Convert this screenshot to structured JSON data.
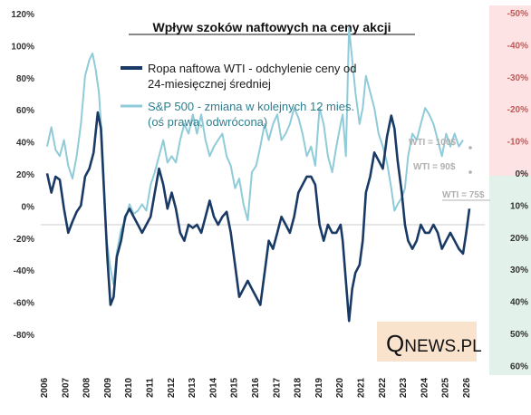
{
  "chart_data": {
    "type": "line",
    "title": "Wpływ szoków naftowych na ceny akcji",
    "x_tick_labels": [
      "2006",
      "2007",
      "2008",
      "2009",
      "2010",
      "2011",
      "2012",
      "2013",
      "2014",
      "2015",
      "2016",
      "2017",
      "2018",
      "2019",
      "2020",
      "2021",
      "2022",
      "2023",
      "2024",
      "2025",
      "2026"
    ],
    "y_left": {
      "ylim": [
        -80,
        120
      ],
      "tick_labels": [
        "-80%",
        "-60%",
        "-40%",
        "-20%",
        "0%",
        "20%",
        "40%",
        "60%",
        "80%",
        "100%",
        "120%"
      ]
    },
    "y_right": {
      "inverted": true,
      "tick_labels": [
        "-50%",
        "-40%",
        "-30%",
        "-20%",
        "-10%",
        "0%",
        "10%",
        "20%",
        "30%",
        "40%",
        "50%",
        "60%"
      ]
    },
    "legend": [
      {
        "label_line1": "Ropa naftowa WTI - odchylenie ceny od",
        "label_line2": "24-miesięcznej średniej",
        "color": "#1a3a66"
      },
      {
        "label_line1": "S&P 500 - zmiana w kolejnych 12 mies.",
        "label_line2": "(oś prawa, odwrócona)",
        "color": "#8fcbd8"
      }
    ],
    "annotations": [
      "WTI = 100$",
      "WTI = 90$",
      "WTI = 75$"
    ],
    "series": [
      {
        "name": "Ropa naftowa WTI - odchylenie ceny od 24-miesięcznej średniej",
        "axis": "left",
        "color": "#1a3a66",
        "points": [
          [
            2006.0,
            32
          ],
          [
            2006.2,
            20
          ],
          [
            2006.4,
            30
          ],
          [
            2006.6,
            28
          ],
          [
            2006.8,
            10
          ],
          [
            2007.0,
            -5
          ],
          [
            2007.2,
            2
          ],
          [
            2007.4,
            8
          ],
          [
            2007.6,
            12
          ],
          [
            2007.8,
            30
          ],
          [
            2008.0,
            35
          ],
          [
            2008.2,
            45
          ],
          [
            2008.4,
            70
          ],
          [
            2008.55,
            60
          ],
          [
            2008.7,
            20
          ],
          [
            2008.85,
            -20
          ],
          [
            2009.0,
            -50
          ],
          [
            2009.15,
            -45
          ],
          [
            2009.3,
            -20
          ],
          [
            2009.5,
            -10
          ],
          [
            2009.7,
            5
          ],
          [
            2009.9,
            10
          ],
          [
            2010.1,
            5
          ],
          [
            2010.3,
            0
          ],
          [
            2010.5,
            -5
          ],
          [
            2010.7,
            0
          ],
          [
            2010.9,
            5
          ],
          [
            2011.1,
            20
          ],
          [
            2011.3,
            35
          ],
          [
            2011.5,
            25
          ],
          [
            2011.7,
            10
          ],
          [
            2011.9,
            20
          ],
          [
            2012.1,
            10
          ],
          [
            2012.3,
            -5
          ],
          [
            2012.5,
            -10
          ],
          [
            2012.7,
            0
          ],
          [
            2012.9,
            -2
          ],
          [
            2013.1,
            0
          ],
          [
            2013.3,
            -5
          ],
          [
            2013.5,
            5
          ],
          [
            2013.7,
            15
          ],
          [
            2013.9,
            5
          ],
          [
            2014.1,
            0
          ],
          [
            2014.3,
            5
          ],
          [
            2014.5,
            8
          ],
          [
            2014.7,
            -5
          ],
          [
            2014.9,
            -25
          ],
          [
            2015.1,
            -45
          ],
          [
            2015.3,
            -40
          ],
          [
            2015.5,
            -35
          ],
          [
            2015.7,
            -40
          ],
          [
            2015.9,
            -45
          ],
          [
            2016.1,
            -50
          ],
          [
            2016.3,
            -30
          ],
          [
            2016.5,
            -10
          ],
          [
            2016.7,
            -15
          ],
          [
            2016.9,
            -5
          ],
          [
            2017.1,
            5
          ],
          [
            2017.3,
            0
          ],
          [
            2017.5,
            -5
          ],
          [
            2017.7,
            5
          ],
          [
            2017.9,
            20
          ],
          [
            2018.1,
            25
          ],
          [
            2018.3,
            30
          ],
          [
            2018.5,
            30
          ],
          [
            2018.7,
            25
          ],
          [
            2018.9,
            0
          ],
          [
            2019.1,
            -10
          ],
          [
            2019.3,
            0
          ],
          [
            2019.5,
            -5
          ],
          [
            2019.7,
            -5
          ],
          [
            2019.9,
            0
          ],
          [
            2020.0,
            -10
          ],
          [
            2020.15,
            -35
          ],
          [
            2020.3,
            -60
          ],
          [
            2020.45,
            -40
          ],
          [
            2020.6,
            -30
          ],
          [
            2020.8,
            -25
          ],
          [
            2020.95,
            -10
          ],
          [
            2021.1,
            20
          ],
          [
            2021.3,
            30
          ],
          [
            2021.5,
            45
          ],
          [
            2021.7,
            40
          ],
          [
            2021.9,
            35
          ],
          [
            2022.1,
            55
          ],
          [
            2022.3,
            68
          ],
          [
            2022.45,
            60
          ],
          [
            2022.6,
            40
          ],
          [
            2022.8,
            20
          ],
          [
            2022.95,
            0
          ],
          [
            2023.1,
            -10
          ],
          [
            2023.3,
            -15
          ],
          [
            2023.5,
            -10
          ],
          [
            2023.7,
            0
          ],
          [
            2023.9,
            -5
          ],
          [
            2024.1,
            -5
          ],
          [
            2024.3,
            0
          ],
          [
            2024.5,
            -5
          ],
          [
            2024.7,
            -15
          ],
          [
            2024.9,
            -10
          ],
          [
            2025.1,
            -5
          ],
          [
            2025.3,
            -10
          ],
          [
            2025.5,
            -15
          ],
          [
            2025.7,
            -18
          ],
          [
            2025.85,
            -5
          ],
          [
            2026.0,
            10
          ]
        ]
      },
      {
        "name": "S&P 500 - zmiana w kolejnych 12 mies.",
        "axis": "right",
        "color": "#8fcbd8",
        "points": [
          [
            2006.0,
            -8
          ],
          [
            2006.2,
            -14
          ],
          [
            2006.4,
            -7
          ],
          [
            2006.6,
            -5
          ],
          [
            2006.8,
            -10
          ],
          [
            2007.0,
            -2
          ],
          [
            2007.2,
            2
          ],
          [
            2007.4,
            -5
          ],
          [
            2007.6,
            -15
          ],
          [
            2007.8,
            -30
          ],
          [
            2008.0,
            -35
          ],
          [
            2008.15,
            -37
          ],
          [
            2008.3,
            -32
          ],
          [
            2008.45,
            -25
          ],
          [
            2008.6,
            -10
          ],
          [
            2008.8,
            20
          ],
          [
            2009.0,
            30
          ],
          [
            2009.15,
            35
          ],
          [
            2009.3,
            25
          ],
          [
            2009.5,
            18
          ],
          [
            2009.7,
            15
          ],
          [
            2009.9,
            10
          ],
          [
            2010.1,
            13
          ],
          [
            2010.3,
            12
          ],
          [
            2010.5,
            10
          ],
          [
            2010.7,
            12
          ],
          [
            2010.9,
            4
          ],
          [
            2011.1,
            0
          ],
          [
            2011.3,
            -5
          ],
          [
            2011.5,
            -10
          ],
          [
            2011.7,
            -3
          ],
          [
            2011.9,
            -5
          ],
          [
            2012.1,
            -3
          ],
          [
            2012.3,
            -10
          ],
          [
            2012.5,
            -15
          ],
          [
            2012.7,
            -12
          ],
          [
            2012.9,
            -18
          ],
          [
            2013.1,
            -12
          ],
          [
            2013.3,
            -18
          ],
          [
            2013.5,
            -10
          ],
          [
            2013.7,
            -5
          ],
          [
            2013.9,
            -8
          ],
          [
            2014.1,
            -10
          ],
          [
            2014.3,
            -12
          ],
          [
            2014.5,
            -5
          ],
          [
            2014.7,
            -2
          ],
          [
            2014.9,
            5
          ],
          [
            2015.1,
            2
          ],
          [
            2015.3,
            10
          ],
          [
            2015.5,
            15
          ],
          [
            2015.7,
            0
          ],
          [
            2015.9,
            -2
          ],
          [
            2016.1,
            -8
          ],
          [
            2016.3,
            -15
          ],
          [
            2016.5,
            -10
          ],
          [
            2016.7,
            -15
          ],
          [
            2016.9,
            -18
          ],
          [
            2017.1,
            -10
          ],
          [
            2017.3,
            -12
          ],
          [
            2017.5,
            -15
          ],
          [
            2017.7,
            -20
          ],
          [
            2017.9,
            -17
          ],
          [
            2018.1,
            -12
          ],
          [
            2018.3,
            -5
          ],
          [
            2018.5,
            -8
          ],
          [
            2018.7,
            -2
          ],
          [
            2018.9,
            -20
          ],
          [
            2019.1,
            -15
          ],
          [
            2019.3,
            -5
          ],
          [
            2019.5,
            0
          ],
          [
            2019.7,
            -8
          ],
          [
            2019.9,
            -15
          ],
          [
            2020.0,
            -18
          ],
          [
            2020.15,
            -5
          ],
          [
            2020.3,
            -45
          ],
          [
            2020.45,
            -35
          ],
          [
            2020.6,
            -25
          ],
          [
            2020.8,
            -15
          ],
          [
            2020.95,
            -20
          ],
          [
            2021.1,
            -30
          ],
          [
            2021.3,
            -25
          ],
          [
            2021.5,
            -20
          ],
          [
            2021.7,
            -12
          ],
          [
            2021.9,
            -8
          ],
          [
            2022.1,
            -3
          ],
          [
            2022.3,
            5
          ],
          [
            2022.45,
            12
          ],
          [
            2022.6,
            10
          ],
          [
            2022.8,
            8
          ],
          [
            2022.95,
            5
          ],
          [
            2023.1,
            -5
          ],
          [
            2023.3,
            -12
          ],
          [
            2023.5,
            -10
          ],
          [
            2023.7,
            -15
          ],
          [
            2023.9,
            -20
          ],
          [
            2024.1,
            -18
          ],
          [
            2024.3,
            -15
          ],
          [
            2024.5,
            -10
          ],
          [
            2024.7,
            -5
          ],
          [
            2024.9,
            -12
          ],
          [
            2025.1,
            -8
          ],
          [
            2025.3,
            -12
          ],
          [
            2025.5,
            -8
          ],
          [
            2025.7,
            -10
          ]
        ]
      }
    ]
  },
  "watermark": {
    "text_big": "Q",
    "text_rest": "NEWS.PL"
  },
  "colors": {
    "right_top_band": "#fde3e3",
    "right_bottom_band": "#e2f1ea"
  }
}
